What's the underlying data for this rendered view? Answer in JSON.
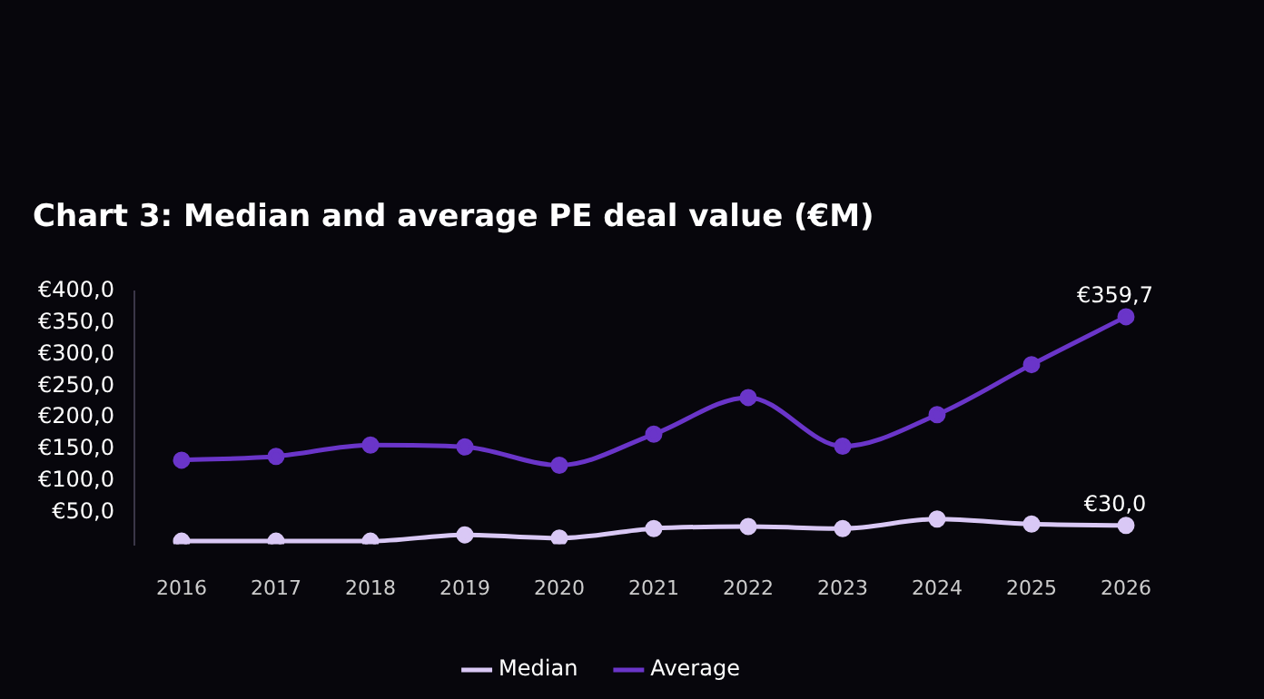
{
  "chart_data": {
    "type": "line",
    "title": "Chart 3: Median and average PE deal value (€M)",
    "categories": [
      "2016",
      "2017",
      "2018",
      "2019",
      "2020",
      "2021",
      "2022",
      "2023",
      "2024",
      "2025",
      "2026"
    ],
    "series": [
      {
        "name": "Median",
        "color": "#d9c8f5",
        "values": [
          5,
          5,
          5,
          15,
          10,
          25,
          28,
          25,
          40,
          32,
          30
        ],
        "value_labels": [
          null,
          null,
          null,
          null,
          null,
          null,
          null,
          null,
          null,
          null,
          "€30,0"
        ]
      },
      {
        "name": "Average",
        "color": "#6a35c9",
        "values": [
          133,
          139,
          157,
          154,
          125,
          174,
          232,
          155,
          205,
          284,
          359.7
        ],
        "value_labels": [
          null,
          null,
          null,
          null,
          null,
          null,
          null,
          null,
          null,
          null,
          "€359,7"
        ]
      }
    ],
    "ylim": [
      0,
      400
    ],
    "yticks": [
      {
        "value": 50,
        "label": "€50,0"
      },
      {
        "value": 100,
        "label": "€100,0"
      },
      {
        "value": 150,
        "label": "€150,0"
      },
      {
        "value": 200,
        "label": "€200,0"
      },
      {
        "value": 250,
        "label": "€250,0"
      },
      {
        "value": 300,
        "label": "€300,0"
      },
      {
        "value": 350,
        "label": "€350,0"
      },
      {
        "value": 400,
        "label": "€400,0"
      }
    ],
    "legend": "bottom",
    "marker": "circle",
    "line_style": "solid"
  }
}
